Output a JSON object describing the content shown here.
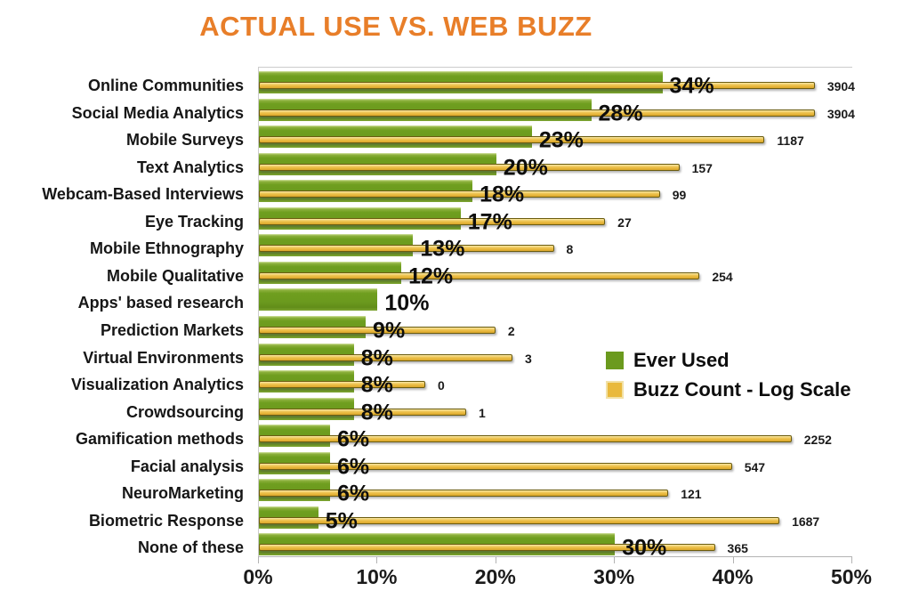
{
  "title": "ACTUAL USE VS. WEB BUZZ",
  "colors": {
    "title_text": "#e87e29",
    "green_bar": "#6b9a1e",
    "orange_bar": "#e9b93c",
    "orange_bar_border": "#6b5c10",
    "axis_line": "#b3b3b3",
    "plot_border": "#cccccc",
    "label_text": "#111111"
  },
  "legend": {
    "items": [
      {
        "label": "Ever Used",
        "color": "#6b9a1e"
      },
      {
        "label": "Buzz Count - Log Scale",
        "color": "#e9b93c"
      }
    ]
  },
  "x_axis": {
    "tick_labels": [
      "0%",
      "10%",
      "20%",
      "30%",
      "40%",
      "50%"
    ],
    "min": 0,
    "max": 50
  },
  "chart_data": {
    "type": "bar",
    "orientation": "horizontal",
    "title": "ACTUAL USE VS. WEB BUZZ",
    "categories": [
      "Online Communities",
      "Social Media Analytics",
      "Mobile Surveys",
      "Text Analytics",
      "Webcam-Based Interviews",
      "Eye Tracking",
      "Mobile Ethnography",
      "Mobile Qualitative",
      "Apps' based research",
      "Prediction Markets",
      "Virtual Environments",
      "Visualization Analytics",
      "Crowdsourcing",
      "Gamification methods",
      "Facial analysis",
      "NeuroMarketing",
      "Biometric Response",
      "None of these"
    ],
    "series": [
      {
        "name": "Ever Used",
        "unit": "percent",
        "axis": "linear",
        "values": [
          34,
          28,
          23,
          20,
          18,
          17,
          13,
          12,
          10,
          9,
          8,
          8,
          8,
          6,
          6,
          6,
          5,
          30
        ]
      },
      {
        "name": "Buzz Count - Log Scale",
        "unit": "count",
        "axis": "log",
        "values": [
          3904,
          3904,
          1187,
          157,
          99,
          27,
          8,
          254,
          null,
          2,
          3,
          0,
          1,
          2252,
          547,
          121,
          1687,
          365
        ]
      }
    ],
    "xlim": [
      0,
      50
    ],
    "grid": false,
    "legend_position": "center-right"
  }
}
